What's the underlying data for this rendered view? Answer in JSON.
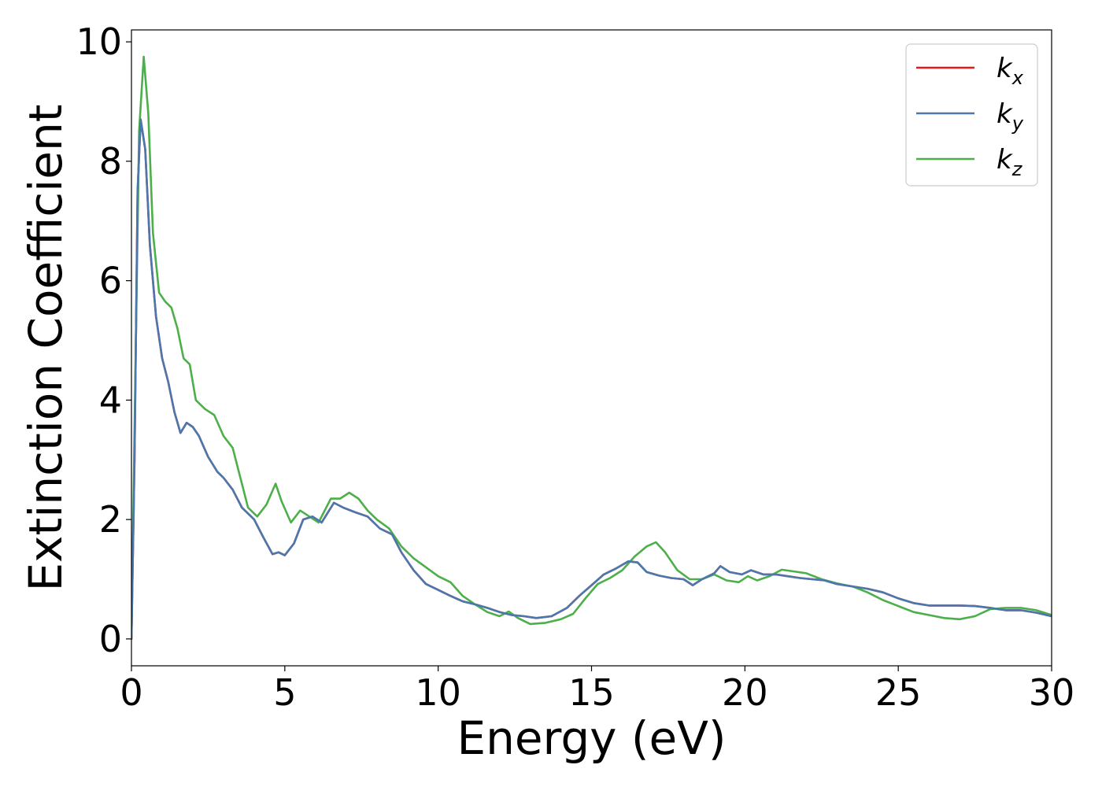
{
  "chart_data": {
    "type": "line",
    "title": "",
    "xlabel": "Energy (eV)",
    "ylabel": "Extinction Coefficient",
    "xlim": [
      0,
      30
    ],
    "ylim": [
      -0.45,
      10.2
    ],
    "xticks": [
      "0",
      "5",
      "10",
      "15",
      "20",
      "25",
      "30"
    ],
    "yticks": [
      "0",
      "2",
      "4",
      "6",
      "8",
      "10"
    ],
    "grid": false,
    "legend_position": "top-right",
    "series": [
      {
        "name": "k_x",
        "label_base": "k",
        "label_sub": "x",
        "color": "#e41a1c",
        "points": [
          [
            0,
            0
          ],
          [
            0.1,
            3
          ],
          [
            0.2,
            7.5
          ],
          [
            0.3,
            8.7
          ],
          [
            0.45,
            8.2
          ],
          [
            0.6,
            6.6
          ],
          [
            0.8,
            5.4
          ],
          [
            1.0,
            4.7
          ],
          [
            1.2,
            4.3
          ],
          [
            1.4,
            3.8
          ],
          [
            1.6,
            3.45
          ],
          [
            1.8,
            3.62
          ],
          [
            2.0,
            3.55
          ],
          [
            2.2,
            3.4
          ],
          [
            2.5,
            3.05
          ],
          [
            2.8,
            2.8
          ],
          [
            3.0,
            2.7
          ],
          [
            3.3,
            2.5
          ],
          [
            3.6,
            2.2
          ],
          [
            4.0,
            2.0
          ],
          [
            4.3,
            1.7
          ],
          [
            4.6,
            1.42
          ],
          [
            4.8,
            1.45
          ],
          [
            5.0,
            1.4
          ],
          [
            5.3,
            1.6
          ],
          [
            5.6,
            2.0
          ],
          [
            5.9,
            2.05
          ],
          [
            6.2,
            1.95
          ],
          [
            6.6,
            2.28
          ],
          [
            6.9,
            2.2
          ],
          [
            7.3,
            2.12
          ],
          [
            7.7,
            2.05
          ],
          [
            8.1,
            1.85
          ],
          [
            8.5,
            1.75
          ],
          [
            8.8,
            1.45
          ],
          [
            9.2,
            1.15
          ],
          [
            9.6,
            0.92
          ],
          [
            10.0,
            0.82
          ],
          [
            10.4,
            0.72
          ],
          [
            10.8,
            0.63
          ],
          [
            11.2,
            0.58
          ],
          [
            11.6,
            0.52
          ],
          [
            12.0,
            0.45
          ],
          [
            12.4,
            0.4
          ],
          [
            12.8,
            0.38
          ],
          [
            13.2,
            0.35
          ],
          [
            13.7,
            0.38
          ],
          [
            14.2,
            0.52
          ],
          [
            14.6,
            0.72
          ],
          [
            15.0,
            0.9
          ],
          [
            15.4,
            1.08
          ],
          [
            15.8,
            1.18
          ],
          [
            16.2,
            1.3
          ],
          [
            16.5,
            1.28
          ],
          [
            16.8,
            1.12
          ],
          [
            17.2,
            1.06
          ],
          [
            17.6,
            1.02
          ],
          [
            18.0,
            1.0
          ],
          [
            18.3,
            0.9
          ],
          [
            18.6,
            1.0
          ],
          [
            19.0,
            1.1
          ],
          [
            19.2,
            1.22
          ],
          [
            19.5,
            1.12
          ],
          [
            19.9,
            1.08
          ],
          [
            20.2,
            1.15
          ],
          [
            20.6,
            1.08
          ],
          [
            21.0,
            1.08
          ],
          [
            21.4,
            1.05
          ],
          [
            21.8,
            1.02
          ],
          [
            22.2,
            1.0
          ],
          [
            22.6,
            0.98
          ],
          [
            23.0,
            0.92
          ],
          [
            23.5,
            0.88
          ],
          [
            24.0,
            0.84
          ],
          [
            24.5,
            0.78
          ],
          [
            25.0,
            0.68
          ],
          [
            25.5,
            0.6
          ],
          [
            26.0,
            0.56
          ],
          [
            26.5,
            0.56
          ],
          [
            27.0,
            0.56
          ],
          [
            27.5,
            0.55
          ],
          [
            28.0,
            0.52
          ],
          [
            28.5,
            0.48
          ],
          [
            29.0,
            0.48
          ],
          [
            29.5,
            0.44
          ],
          [
            30.0,
            0.38
          ]
        ]
      },
      {
        "name": "k_y",
        "label_base": "k",
        "label_sub": "y",
        "color": "#4a78ad",
        "points": [
          [
            0,
            0
          ],
          [
            0.1,
            3
          ],
          [
            0.2,
            7.5
          ],
          [
            0.3,
            8.7
          ],
          [
            0.45,
            8.2
          ],
          [
            0.6,
            6.6
          ],
          [
            0.8,
            5.4
          ],
          [
            1.0,
            4.7
          ],
          [
            1.2,
            4.3
          ],
          [
            1.4,
            3.8
          ],
          [
            1.6,
            3.45
          ],
          [
            1.8,
            3.62
          ],
          [
            2.0,
            3.55
          ],
          [
            2.2,
            3.4
          ],
          [
            2.5,
            3.05
          ],
          [
            2.8,
            2.8
          ],
          [
            3.0,
            2.7
          ],
          [
            3.3,
            2.5
          ],
          [
            3.6,
            2.2
          ],
          [
            4.0,
            2.0
          ],
          [
            4.3,
            1.7
          ],
          [
            4.6,
            1.42
          ],
          [
            4.8,
            1.45
          ],
          [
            5.0,
            1.4
          ],
          [
            5.3,
            1.6
          ],
          [
            5.6,
            2.0
          ],
          [
            5.9,
            2.05
          ],
          [
            6.2,
            1.95
          ],
          [
            6.6,
            2.28
          ],
          [
            6.9,
            2.2
          ],
          [
            7.3,
            2.12
          ],
          [
            7.7,
            2.05
          ],
          [
            8.1,
            1.85
          ],
          [
            8.5,
            1.75
          ],
          [
            8.8,
            1.45
          ],
          [
            9.2,
            1.15
          ],
          [
            9.6,
            0.92
          ],
          [
            10.0,
            0.82
          ],
          [
            10.4,
            0.72
          ],
          [
            10.8,
            0.63
          ],
          [
            11.2,
            0.58
          ],
          [
            11.6,
            0.52
          ],
          [
            12.0,
            0.45
          ],
          [
            12.4,
            0.4
          ],
          [
            12.8,
            0.38
          ],
          [
            13.2,
            0.35
          ],
          [
            13.7,
            0.38
          ],
          [
            14.2,
            0.52
          ],
          [
            14.6,
            0.72
          ],
          [
            15.0,
            0.9
          ],
          [
            15.4,
            1.08
          ],
          [
            15.8,
            1.18
          ],
          [
            16.2,
            1.3
          ],
          [
            16.5,
            1.28
          ],
          [
            16.8,
            1.12
          ],
          [
            17.2,
            1.06
          ],
          [
            17.6,
            1.02
          ],
          [
            18.0,
            1.0
          ],
          [
            18.3,
            0.9
          ],
          [
            18.6,
            1.0
          ],
          [
            19.0,
            1.1
          ],
          [
            19.2,
            1.22
          ],
          [
            19.5,
            1.12
          ],
          [
            19.9,
            1.08
          ],
          [
            20.2,
            1.15
          ],
          [
            20.6,
            1.08
          ],
          [
            21.0,
            1.08
          ],
          [
            21.4,
            1.05
          ],
          [
            21.8,
            1.02
          ],
          [
            22.2,
            1.0
          ],
          [
            22.6,
            0.98
          ],
          [
            23.0,
            0.92
          ],
          [
            23.5,
            0.88
          ],
          [
            24.0,
            0.84
          ],
          [
            24.5,
            0.78
          ],
          [
            25.0,
            0.68
          ],
          [
            25.5,
            0.6
          ],
          [
            26.0,
            0.56
          ],
          [
            26.5,
            0.56
          ],
          [
            27.0,
            0.56
          ],
          [
            27.5,
            0.55
          ],
          [
            28.0,
            0.52
          ],
          [
            28.5,
            0.48
          ],
          [
            29.0,
            0.48
          ],
          [
            29.5,
            0.44
          ],
          [
            30.0,
            0.38
          ]
        ]
      },
      {
        "name": "k_z",
        "label_base": "k",
        "label_sub": "z",
        "color": "#4daf4a",
        "points": [
          [
            0,
            0
          ],
          [
            0.1,
            3.5
          ],
          [
            0.25,
            8.5
          ],
          [
            0.4,
            9.75
          ],
          [
            0.55,
            8.8
          ],
          [
            0.7,
            6.8
          ],
          [
            0.9,
            5.8
          ],
          [
            1.1,
            5.65
          ],
          [
            1.3,
            5.55
          ],
          [
            1.5,
            5.2
          ],
          [
            1.7,
            4.7
          ],
          [
            1.9,
            4.6
          ],
          [
            2.1,
            4.0
          ],
          [
            2.4,
            3.85
          ],
          [
            2.7,
            3.75
          ],
          [
            3.0,
            3.4
          ],
          [
            3.3,
            3.2
          ],
          [
            3.6,
            2.6
          ],
          [
            3.8,
            2.2
          ],
          [
            4.1,
            2.05
          ],
          [
            4.4,
            2.25
          ],
          [
            4.7,
            2.6
          ],
          [
            4.9,
            2.3
          ],
          [
            5.2,
            1.95
          ],
          [
            5.5,
            2.15
          ],
          [
            5.8,
            2.05
          ],
          [
            6.1,
            1.95
          ],
          [
            6.5,
            2.35
          ],
          [
            6.8,
            2.35
          ],
          [
            7.1,
            2.45
          ],
          [
            7.4,
            2.35
          ],
          [
            7.7,
            2.15
          ],
          [
            8.0,
            2.0
          ],
          [
            8.4,
            1.85
          ],
          [
            8.8,
            1.55
          ],
          [
            9.2,
            1.35
          ],
          [
            9.6,
            1.2
          ],
          [
            10.0,
            1.05
          ],
          [
            10.4,
            0.95
          ],
          [
            10.8,
            0.72
          ],
          [
            11.2,
            0.58
          ],
          [
            11.6,
            0.45
          ],
          [
            12.0,
            0.38
          ],
          [
            12.3,
            0.46
          ],
          [
            12.6,
            0.35
          ],
          [
            13.0,
            0.25
          ],
          [
            13.5,
            0.27
          ],
          [
            14.0,
            0.33
          ],
          [
            14.4,
            0.42
          ],
          [
            14.8,
            0.68
          ],
          [
            15.2,
            0.92
          ],
          [
            15.6,
            1.02
          ],
          [
            16.0,
            1.15
          ],
          [
            16.4,
            1.38
          ],
          [
            16.8,
            1.55
          ],
          [
            17.1,
            1.62
          ],
          [
            17.4,
            1.45
          ],
          [
            17.8,
            1.15
          ],
          [
            18.2,
            1.0
          ],
          [
            18.6,
            1.0
          ],
          [
            19.0,
            1.08
          ],
          [
            19.4,
            0.98
          ],
          [
            19.8,
            0.95
          ],
          [
            20.1,
            1.05
          ],
          [
            20.4,
            0.98
          ],
          [
            20.8,
            1.05
          ],
          [
            21.2,
            1.16
          ],
          [
            21.6,
            1.13
          ],
          [
            22.0,
            1.1
          ],
          [
            22.5,
            1.0
          ],
          [
            23.0,
            0.93
          ],
          [
            23.5,
            0.88
          ],
          [
            24.0,
            0.78
          ],
          [
            24.5,
            0.65
          ],
          [
            25.0,
            0.55
          ],
          [
            25.5,
            0.45
          ],
          [
            26.0,
            0.4
          ],
          [
            26.5,
            0.35
          ],
          [
            27.0,
            0.33
          ],
          [
            27.5,
            0.38
          ],
          [
            28.0,
            0.5
          ],
          [
            28.5,
            0.52
          ],
          [
            29.0,
            0.52
          ],
          [
            29.5,
            0.48
          ],
          [
            30.0,
            0.4
          ]
        ]
      }
    ]
  }
}
